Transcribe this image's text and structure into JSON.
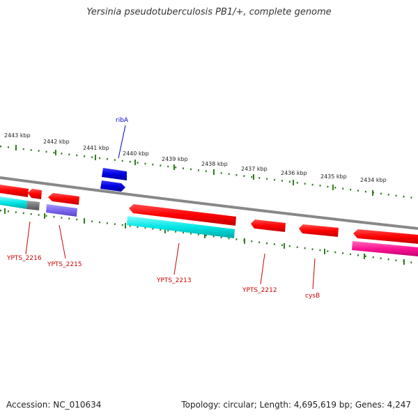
{
  "title": "Yersinia pseudotuberculosis PB1/+, complete genome",
  "footer": {
    "accession": "Accession: NC_010634",
    "summary": "Topology: circular; Length: 4,695,619 bp; Genes: 4,247"
  },
  "colors": {
    "backbone": "#888888",
    "tick": "#2e7d1e",
    "gene_label": "#cc0000",
    "rna_label": "#0000cc",
    "red": "#ff0000",
    "cyan": "#00e5e5",
    "blue": "#0000e0",
    "gray": "#777777",
    "slate": "#7b68ee",
    "magenta": "#ff1493"
  },
  "scale_labels": [
    {
      "label": "2443 kbp"
    },
    {
      "label": "2442 kbp"
    },
    {
      "label": "2441 kbp"
    },
    {
      "label": "2440 kbp"
    },
    {
      "label": "2439 kbp"
    },
    {
      "label": "2438 kbp"
    },
    {
      "label": "2437 kbp"
    },
    {
      "label": "2436 kbp"
    },
    {
      "label": "2435 kbp"
    },
    {
      "label": "2434 kbp"
    }
  ],
  "gene_labels": [
    {
      "label": "YPTS_2216",
      "kind": "gene"
    },
    {
      "label": "YPTS_2215",
      "kind": "gene"
    },
    {
      "label": "YPTS_2213",
      "kind": "gene"
    },
    {
      "label": "YPTS_2212",
      "kind": "gene"
    },
    {
      "label": "cysB",
      "kind": "gene"
    },
    {
      "label": "ribA",
      "kind": "rna"
    }
  ]
}
